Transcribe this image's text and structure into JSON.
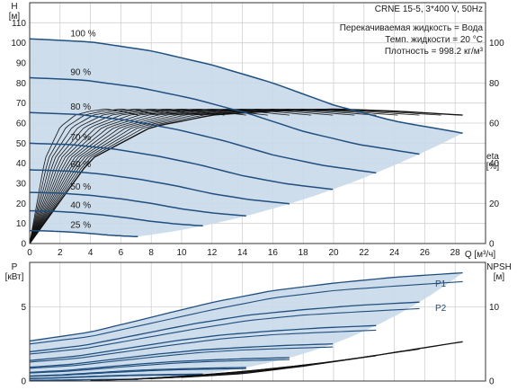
{
  "chart_data": [
    {
      "type": "line",
      "panel": "head-eta",
      "title": "CRNE 15-5, 3*400 V, 50Hz",
      "info_lines": [
        "Перекачиваемая жидкость = Вода",
        "Темп. жидкости = 20 °C",
        "Плотность = 998.2 кг/м³"
      ],
      "x_axis": {
        "label": "Q [м³/ч]",
        "ticks": [
          0,
          2,
          4,
          6,
          8,
          10,
          12,
          14,
          16,
          18,
          20,
          22,
          24,
          26,
          28
        ],
        "range": [
          0,
          30
        ]
      },
      "y_left": {
        "label_top": "H",
        "label_unit": "[м]",
        "ticks": [
          0,
          10,
          20,
          30,
          40,
          50,
          60,
          70,
          80,
          90,
          100,
          110
        ],
        "range": [
          0,
          120
        ]
      },
      "y_right": {
        "label_top": "eta",
        "label_unit": "[%]",
        "ticks": [
          0,
          20,
          40,
          60,
          80,
          100
        ],
        "range": [
          0,
          100
        ]
      },
      "grid": true,
      "envelope_color": "#c9d9ea",
      "curve_color": "#1f4f7f",
      "head_curves": [
        {
          "name": "100 %",
          "speed": 1.0
        },
        {
          "name": "90 %",
          "speed": 0.9
        },
        {
          "name": "80 %",
          "speed": 0.8
        },
        {
          "name": "70 %",
          "speed": 0.7
        },
        {
          "name": "60 %",
          "speed": 0.6
        },
        {
          "name": "50 %",
          "speed": 0.5
        },
        {
          "name": "40 %",
          "speed": 0.4
        },
        {
          "name": "25 %",
          "speed": 0.25
        }
      ],
      "head_100_points": {
        "q": [
          0,
          4,
          8,
          12,
          16,
          20,
          24,
          28.5
        ],
        "h": [
          102,
          100.5,
          96,
          89,
          80,
          69,
          61,
          55
        ]
      },
      "eta_100_points": {
        "q": [
          0,
          4,
          8,
          12,
          16,
          20,
          24,
          28.5
        ],
        "eta": [
          0,
          42,
          58,
          64,
          66,
          67,
          66,
          64
        ]
      }
    },
    {
      "type": "line",
      "panel": "power-npsh",
      "x_axis": {
        "ticks": [
          0,
          2,
          4,
          6,
          8,
          10,
          12,
          14,
          16,
          18,
          20,
          22,
          24,
          26,
          28
        ],
        "range": [
          0,
          30
        ]
      },
      "y_left": {
        "label_top": "P",
        "label_unit": "[кВт]",
        "ticks": [
          0,
          5
        ],
        "range": [
          0,
          8
        ]
      },
      "y_right": {
        "label_top": "NPSH",
        "label_unit": "[м]",
        "ticks": [
          0,
          10
        ],
        "range": [
          0,
          16
        ]
      },
      "grid": true,
      "series_labels": [
        "P1",
        "P2"
      ],
      "p1_100_points": {
        "q": [
          0,
          4,
          8,
          12,
          16,
          20,
          24,
          28.5
        ],
        "p": [
          2.7,
          3.3,
          4.3,
          5.3,
          6.1,
          6.6,
          7.0,
          7.3
        ]
      },
      "p2_100_points": {
        "q": [
          0,
          4,
          8,
          12,
          16,
          20,
          24,
          28.5
        ],
        "p": [
          2.5,
          3.0,
          3.9,
          4.8,
          5.6,
          6.1,
          6.4,
          6.7
        ]
      },
      "npsh_points": {
        "q": [
          10,
          14,
          18,
          22,
          26,
          28.5
        ],
        "npsh": [
          0.5,
          1.0,
          2.0,
          3.2,
          4.5,
          5.3
        ]
      }
    }
  ]
}
